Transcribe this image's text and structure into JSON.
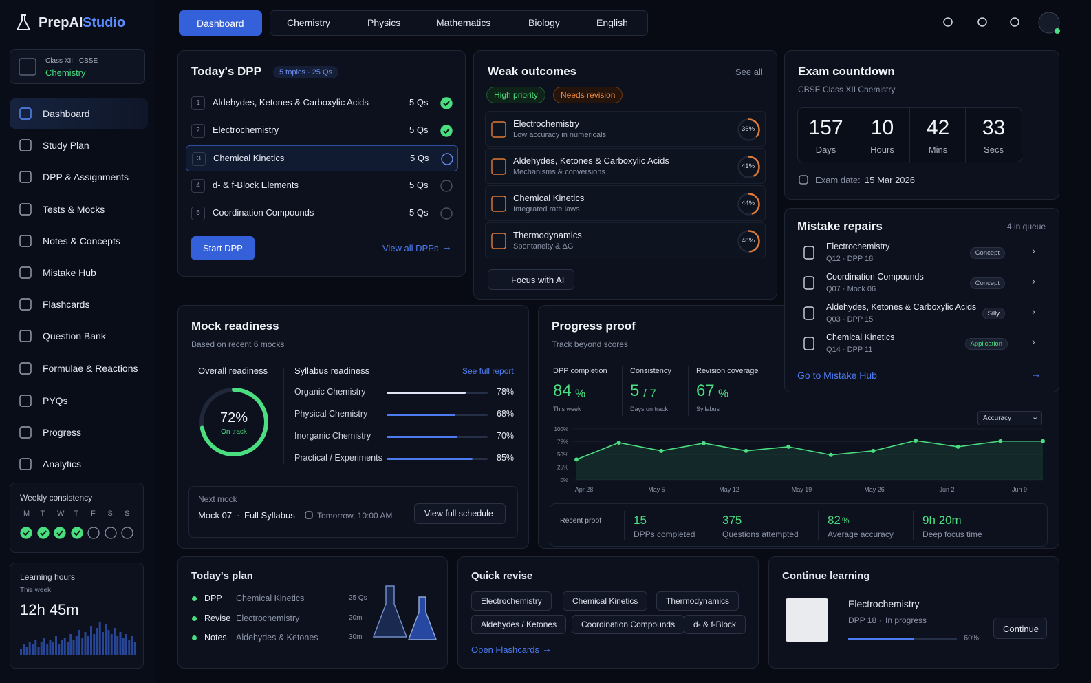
{
  "brand": {
    "name": "PrepAI",
    "accent": "Studio"
  },
  "class_selector": {
    "label": "Class XII · CBSE",
    "subject": "Chemistry"
  },
  "nav": [
    "Dashboard",
    "Study Plan",
    "DPP & Assignments",
    "Tests & Mocks",
    "Notes & Concepts",
    "Mistake Hub",
    "Flashcards",
    "Question Bank",
    "Formulae & Reactions",
    "PYQs",
    "Progress",
    "Analytics"
  ],
  "weekly_consistency": {
    "title": "Weekly consistency",
    "days": [
      "M",
      "T",
      "W",
      "T",
      "F",
      "S",
      "S"
    ],
    "done": [
      true,
      true,
      true,
      true,
      false,
      false,
      false
    ]
  },
  "learning_hours": {
    "title": "Learning hours",
    "period": "This week",
    "value": "12h 45m",
    "bars": [
      3,
      5,
      4,
      6,
      5,
      7,
      4,
      6,
      8,
      5,
      7,
      6,
      9,
      5,
      7,
      8,
      6,
      10,
      7,
      9,
      12,
      8,
      11,
      9,
      14,
      10,
      13,
      16,
      11,
      15,
      12,
      10,
      13,
      9,
      11,
      8,
      10,
      7,
      9,
      6
    ]
  },
  "tabs": [
    "Dashboard",
    "Chemistry",
    "Physics",
    "Mathematics",
    "Biology",
    "English"
  ],
  "todays_dpp": {
    "title": "Today's DPP",
    "badge": "5 topics · 25 Qs",
    "items": [
      {
        "n": "1",
        "topic": "Aldehydes, Ketones & Carboxylic Acids",
        "qs": "5 Qs",
        "done": true
      },
      {
        "n": "2",
        "topic": "Electrochemistry",
        "qs": "5 Qs",
        "done": true
      },
      {
        "n": "3",
        "topic": "Chemical Kinetics",
        "qs": "5 Qs",
        "done": false
      },
      {
        "n": "4",
        "topic": "d- & f-Block Elements",
        "qs": "5 Qs",
        "done": false
      },
      {
        "n": "5",
        "topic": "Coordination Compounds",
        "qs": "5 Qs",
        "done": false
      }
    ],
    "start": "Start DPP",
    "view_all": "View all DPPs"
  },
  "weak_outcomes": {
    "title": "Weak outcomes",
    "see_all": "See all",
    "tags": [
      "High priority",
      "Needs revision"
    ],
    "items": [
      {
        "topic": "Electrochemistry",
        "detail": "Low accuracy in numericals",
        "value": 36,
        "label": "36%"
      },
      {
        "topic": "Aldehydes, Ketones & Carboxylic Acids",
        "detail": "Mechanisms & conversions",
        "value": 41,
        "label": "41%"
      },
      {
        "topic": "Chemical Kinetics",
        "detail": "Integrated rate laws",
        "value": 44,
        "label": "44%"
      },
      {
        "topic": "Thermodynamics",
        "detail": "Spontaneity & ΔG",
        "value": 48,
        "label": "48%"
      }
    ],
    "focus": "Focus with AI"
  },
  "exam_countdown": {
    "title": "Exam countdown",
    "subtitle": "CBSE Class XII Chemistry",
    "units": [
      {
        "value": "157",
        "label": "Days"
      },
      {
        "value": "10",
        "label": "Hours"
      },
      {
        "value": "42",
        "label": "Mins"
      },
      {
        "value": "33",
        "label": "Secs"
      }
    ],
    "date_label": "Exam date:",
    "date": "15 Mar 2026"
  },
  "mistake_repairs": {
    "title": "Mistake repairs",
    "queue": "4 in queue",
    "items": [
      {
        "topic": "Electrochemistry",
        "ref": "Q12 · DPP 18",
        "tag": "Concept"
      },
      {
        "topic": "Coordination Compounds",
        "ref": "Q07 · Mock 06",
        "tag": "Concept"
      },
      {
        "topic": "Aldehydes, Ketones & Carboxylic Acids",
        "ref": "Q03 · DPP 15",
        "tag": "Silly"
      },
      {
        "topic": "Chemical Kinetics",
        "ref": "Q14 · DPP 11",
        "tag": "Application"
      }
    ],
    "link": "Go to Mistake Hub"
  },
  "mock_readiness": {
    "title": "Mock readiness",
    "subtitle": "Based on recent 6 mocks",
    "overall_title": "Overall readiness",
    "overall": {
      "value": 72,
      "label": "72%"
    },
    "status": "On track",
    "syllabus_title": "Syllabus readiness",
    "report": "See full report",
    "items": [
      {
        "name": "Organic Chemistry",
        "value": 78,
        "label": "78%"
      },
      {
        "name": "Physical Chemistry",
        "value": 68,
        "label": "68%"
      },
      {
        "name": "Inorganic Chemistry",
        "value": 70,
        "label": "70%"
      },
      {
        "name": "Practical / Experiments",
        "value": 85,
        "label": "85%"
      }
    ],
    "next_mock": {
      "title": "Next mock",
      "name": "Mock 07",
      "scope": "Full Syllabus",
      "when": "Tomorrow, 10:00 AM",
      "button": "View full schedule"
    }
  },
  "progress_proof": {
    "title": "Progress proof",
    "subtitle": "Track beyond scores",
    "stats": [
      {
        "title": "DPP completion",
        "value": "84",
        "unit": "%",
        "note": "This week"
      },
      {
        "title": "Consistency",
        "value": "5",
        "unit": "/ 7",
        "note": "Days on track"
      },
      {
        "title": "Revision coverage",
        "value": "67",
        "unit": "%",
        "note": "Syllabus"
      }
    ],
    "metric": "Accuracy",
    "chart": {
      "type": "line",
      "values": [
        40,
        73,
        57,
        72,
        57,
        65,
        49,
        57,
        77,
        65,
        76,
        76
      ],
      "xticks": [
        "Apr 28",
        "May 5",
        "May 12",
        "May 19",
        "May 26",
        "Jun 2",
        "Jun 9"
      ],
      "ylim": [
        0,
        100
      ],
      "yticks": [
        {
          "value": 0,
          "label": "0%"
        },
        {
          "value": 25,
          "label": "25%"
        },
        {
          "value": 50,
          "label": "50%"
        },
        {
          "value": 75,
          "label": "75%"
        },
        {
          "value": 100,
          "label": "100%"
        }
      ],
      "color": "#4ade80"
    },
    "recent_title": "Recent proof",
    "recent": [
      {
        "value": "15",
        "label": "DPPs completed"
      },
      {
        "value": "375",
        "label": "Questions attempted"
      },
      {
        "value": "82",
        "unit": "%",
        "label": "Average accuracy"
      },
      {
        "value": "9h 20m",
        "label": "Deep focus time"
      }
    ]
  },
  "todays_plan": {
    "title": "Today's plan",
    "items": [
      {
        "kind": "DPP",
        "topic": "Chemical Kinetics",
        "amount": "25 Qs"
      },
      {
        "kind": "Revise",
        "topic": "Electrochemistry",
        "amount": "20m"
      },
      {
        "kind": "Notes",
        "topic": "Aldehydes & Ketones",
        "amount": "30m"
      }
    ]
  },
  "quick_revise": {
    "title": "Quick revise",
    "chips": [
      "Electrochemistry",
      "Chemical Kinetics",
      "Thermodynamics",
      "Aldehydes / Ketones",
      "Coordination Compounds",
      "d- & f-Block"
    ],
    "link": "Open Flashcards"
  },
  "continue_learning": {
    "title": "Continue learning",
    "topic": "Electrochemistry",
    "meta": "DPP 18",
    "status": "In progress",
    "progress": {
      "value": 60,
      "label": "60%"
    },
    "button": "Continue"
  }
}
